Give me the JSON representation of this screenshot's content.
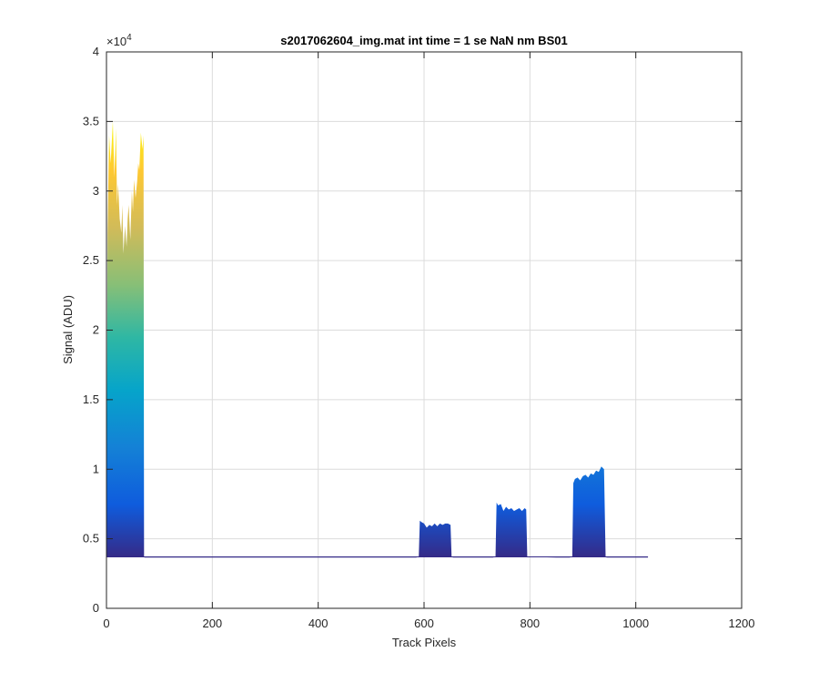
{
  "chart_data": {
    "type": "area",
    "title": "s2017062604_img.mat int time = 1 se  NaN nm BS01",
    "xlabel": "Track Pixels",
    "ylabel": "Signal (ADU)",
    "xlim": [
      0,
      1200
    ],
    "ylim": [
      0,
      40000
    ],
    "x_ticks": [
      0,
      200,
      400,
      600,
      800,
      1000,
      1200
    ],
    "y_ticks": [
      0,
      5000,
      10000,
      15000,
      20000,
      25000,
      30000,
      35000,
      40000
    ],
    "x_tick_labels": [
      "0",
      "200",
      "400",
      "600",
      "800",
      "1000",
      "1200"
    ],
    "y_tick_labels": [
      "0",
      "0.5",
      "1",
      "1.5",
      "2",
      "2.5",
      "3",
      "3.5",
      "4"
    ],
    "y_exponent_label": "×10",
    "y_exponent_power": "4",
    "grid": true,
    "colormap": "parula",
    "baseline": 3700,
    "series": [
      {
        "x": [
          0,
          2,
          5,
          8,
          10,
          12,
          15,
          18,
          20,
          22,
          25,
          28,
          30,
          32,
          35,
          38,
          40,
          42,
          45,
          48,
          50,
          52,
          55,
          58,
          60,
          62,
          65,
          68,
          70,
          71,
          72,
          80,
          100,
          200,
          300,
          400,
          500,
          585,
          590,
          592,
          595,
          600,
          605,
          610,
          615,
          620,
          625,
          630,
          635,
          640,
          645,
          650,
          652,
          655,
          700,
          730,
          735,
          737,
          740,
          745,
          750,
          755,
          760,
          765,
          770,
          775,
          780,
          785,
          790,
          793,
          795,
          850,
          875,
          880,
          882,
          885,
          890,
          895,
          900,
          905,
          910,
          915,
          920,
          925,
          930,
          935,
          940,
          943,
          945,
          1000,
          1023
        ],
        "y": [
          3700,
          27000,
          34000,
          32000,
          33500,
          35000,
          31000,
          34500,
          29000,
          30500,
          28000,
          27000,
          29000,
          25500,
          27500,
          26000,
          28000,
          29000,
          26500,
          30000,
          28500,
          30800,
          29500,
          30700,
          32000,
          31500,
          34200,
          33000,
          34000,
          3700,
          3650,
          3650,
          3650,
          3650,
          3650,
          3650,
          3650,
          3650,
          3700,
          6300,
          6200,
          6100,
          5800,
          6000,
          5900,
          6100,
          5900,
          6100,
          6000,
          6100,
          6100,
          6000,
          3700,
          3650,
          3650,
          3650,
          3700,
          7600,
          7400,
          7500,
          7000,
          7300,
          7100,
          7200,
          7000,
          7100,
          7200,
          7000,
          7200,
          7100,
          3700,
          3650,
          3650,
          3700,
          9000,
          9300,
          9400,
          9200,
          9500,
          9600,
          9400,
          9700,
          9600,
          9900,
          9800,
          10200,
          10000,
          3700,
          3650,
          3650,
          3650
        ]
      }
    ]
  }
}
